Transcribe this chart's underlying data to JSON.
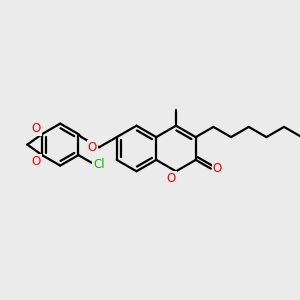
{
  "bg_color": "#ebebeb",
  "bond_color": "#000000",
  "o_color": "#ff0000",
  "cl_color": "#00bb00",
  "lw": 1.6,
  "figsize": [
    3.0,
    3.0
  ],
  "dpi": 100,
  "xlim": [
    0.0,
    1.0
  ],
  "ylim": [
    0.0,
    1.0
  ]
}
